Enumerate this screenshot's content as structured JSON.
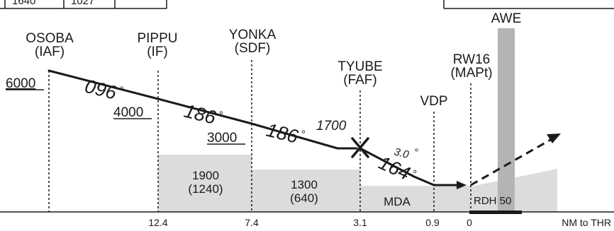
{
  "top_table": {
    "cells": [
      "1640",
      "1027"
    ]
  },
  "fixes": [
    {
      "name": "OSOBA",
      "role": "(IAF)",
      "altitude": "6000"
    },
    {
      "name": "PIPPU",
      "role": "(IF)",
      "altitude": "4000"
    },
    {
      "name": "YONKA",
      "role": "(SDF)",
      "altitude": "3000"
    },
    {
      "name": "TYUBE",
      "role": "(FAF)",
      "altitude": "1700"
    },
    {
      "name": "VDP",
      "role": ""
    },
    {
      "name": "RW16",
      "role": "(MAPt)"
    }
  ],
  "obstacle_label": "AWE",
  "courses": [
    {
      "heading": "096",
      "deg": "°"
    },
    {
      "heading": "186",
      "deg": "°"
    },
    {
      "heading": "186",
      "deg": "°"
    },
    {
      "heading": "164",
      "deg": "°"
    }
  ],
  "glide_angle": "3.0",
  "glide_angle_deg": "°",
  "terrain_blocks": [
    {
      "top": "1900",
      "bottom": "(1240)"
    },
    {
      "top": "1300",
      "bottom": "(640)"
    }
  ],
  "mda_label": "MDA",
  "rdh_label": "RDH 50",
  "distances": [
    "12.4",
    "7.4",
    "3.1",
    "0.9",
    "0"
  ],
  "distance_unit": "NM to THR"
}
